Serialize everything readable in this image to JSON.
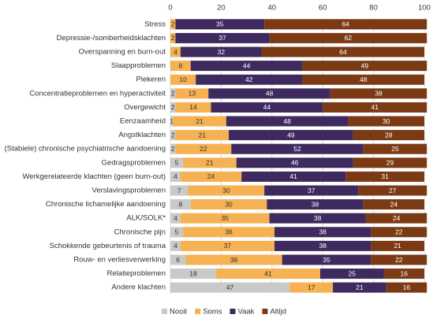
{
  "chart_data": {
    "type": "stacked-bar-horizontal",
    "categories": [
      "Stress",
      "Depressie-/somberheidsklachten",
      "Overspanning en burn-out",
      "Slaapproblemen",
      "Piekeren",
      "Concentratieproblemen en hyperactiviteit",
      "Overgewicht",
      "Eenzaamheid",
      "Angstklachten",
      "(Stabiele) chronische psychiatrische aandoening",
      "Gedragsproblemen",
      "Werkgerelateerde klachten (geen burn-out)",
      "Verslavingsproblemen",
      "Chronische lichamelijke aandoening",
      "ALK/SOLK*",
      "Chronische pijn",
      "Schokkende gebeurtenis of trauma",
      "Rouw- en verliesverwerking",
      "Relatieproblemen",
      "Andere klachten"
    ],
    "series": [
      {
        "name": "Nooit",
        "color": "#c9c9c9",
        "values": [
          0,
          0,
          0,
          0,
          0,
          2,
          2,
          1,
          2,
          2,
          5,
          4,
          7,
          8,
          4,
          5,
          4,
          6,
          18,
          47
        ]
      },
      {
        "name": "Soms",
        "color": "#f5b152",
        "values": [
          2,
          2,
          4,
          8,
          10,
          13,
          14,
          21,
          21,
          22,
          21,
          24,
          30,
          30,
          35,
          36,
          37,
          38,
          41,
          17
        ]
      },
      {
        "name": "Vaak",
        "color": "#3e2a5e",
        "values": [
          35,
          37,
          32,
          44,
          42,
          48,
          44,
          48,
          49,
          52,
          46,
          41,
          37,
          38,
          38,
          38,
          38,
          35,
          25,
          21
        ]
      },
      {
        "name": "Altijd",
        "color": "#7b3a14",
        "values": [
          64,
          62,
          64,
          49,
          48,
          38,
          41,
          30,
          28,
          25,
          29,
          31,
          27,
          24,
          24,
          22,
          21,
          22,
          16,
          16
        ]
      }
    ],
    "xlim": [
      0,
      100
    ],
    "xticks": [
      0,
      20,
      40,
      60,
      80,
      100
    ],
    "grid": true
  }
}
